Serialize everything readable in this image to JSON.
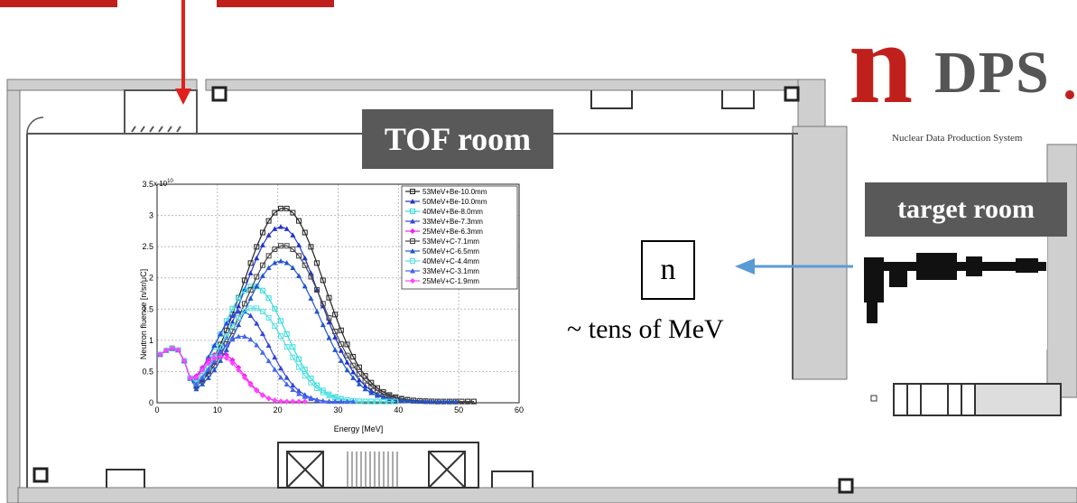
{
  "labels": {
    "tof_room": "TOF room",
    "target_room": "target room",
    "particle": "n",
    "energy_note": "~ tens of MeV"
  },
  "logo": {
    "letter": "n",
    "text": "DPS",
    "subtitle": "Nuclear Data Production System",
    "color_red": "#c0201c",
    "color_gray": "#555555"
  },
  "chart_data": {
    "type": "line",
    "xlabel": "Energy [MeV]",
    "ylabel": "Neutron fluence [n/sr/μC]",
    "y_multiplier": "x 10",
    "y_multiplier_exp": "10",
    "xlim": [
      0,
      60
    ],
    "ylim": [
      0,
      3.5
    ],
    "xticks": [
      0,
      10,
      20,
      30,
      40,
      50,
      60
    ],
    "yticks": [
      0,
      0.5,
      1,
      1.5,
      2,
      2.5,
      3,
      3.5
    ],
    "grid": true,
    "legend_position": "top-right",
    "series": [
      {
        "name": "53MeV+Be-10.0mm",
        "color": "#222222",
        "marker": "square",
        "peak_x": 21,
        "peak_y": 3.1,
        "width": 9.5,
        "end_x": 53
      },
      {
        "name": "50MeV+Be-10.0mm",
        "color": "#2233cc",
        "marker": "triangle",
        "peak_x": 20.5,
        "peak_y": 2.8,
        "width": 9.0,
        "end_x": 50
      },
      {
        "name": "40MeV+Be-8.0mm",
        "color": "#33dddd",
        "marker": "square",
        "peak_x": 16,
        "peak_y": 1.85,
        "width": 7.5,
        "end_x": 40
      },
      {
        "name": "33MeV+Be-7.3mm",
        "color": "#3344dd",
        "marker": "triangle",
        "peak_x": 14,
        "peak_y": 1.45,
        "width": 6.5,
        "end_x": 33
      },
      {
        "name": "25MeV+Be-6.3mm",
        "color": "#ee22ee",
        "marker": "diamond",
        "peak_x": 10.5,
        "peak_y": 0.78,
        "width": 5.0,
        "end_x": 25
      },
      {
        "name": "53MeV+C-7.1mm",
        "color": "#444444",
        "marker": "square",
        "peak_x": 21,
        "peak_y": 2.5,
        "width": 9.5,
        "end_x": 53
      },
      {
        "name": "50MeV+C-6.5mm",
        "color": "#2255cc",
        "marker": "triangle",
        "peak_x": 20.5,
        "peak_y": 2.25,
        "width": 9.0,
        "end_x": 50
      },
      {
        "name": "40MeV+C-4.4mm",
        "color": "#55e0e0",
        "marker": "square",
        "peak_x": 16,
        "peak_y": 1.5,
        "width": 7.5,
        "end_x": 40
      },
      {
        "name": "33MeV+C-3.1mm",
        "color": "#4466ee",
        "marker": "triangle",
        "peak_x": 14,
        "peak_y": 1.05,
        "width": 6.5,
        "end_x": 33
      },
      {
        "name": "25MeV+C-1.9mm",
        "color": "#ff44ff",
        "marker": "diamond",
        "peak_x": 10.5,
        "peak_y": 0.72,
        "width": 5.0,
        "end_x": 25
      }
    ]
  }
}
